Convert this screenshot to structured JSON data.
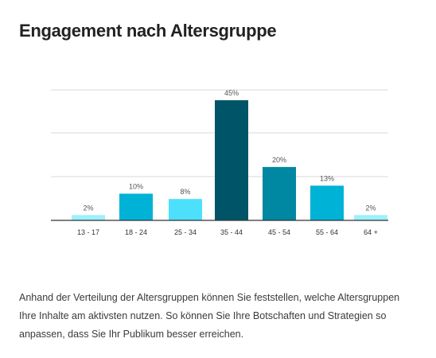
{
  "title": "Engagement nach Altersgruppe",
  "description": "Anhand der Verteilung der Altersgruppen können Sie feststellen, welche Altersgruppen Ihre Inhalte am aktivsten nutzen. So können Sie Ihre Botschaften und Strategien so anpassen, dass Sie Ihr Publikum besser erreichen.",
  "chart_data": {
    "type": "bar",
    "title": "",
    "xlabel": "",
    "ylabel": "",
    "categories": [
      "13 - 17",
      "18 - 24",
      "25 - 34",
      "35 - 44",
      "45 - 54",
      "55 - 64",
      "64 +"
    ],
    "values": [
      2,
      10,
      8,
      45,
      20,
      13,
      2
    ],
    "value_labels": [
      "2%",
      "10%",
      "8%",
      "45%",
      "20%",
      "13%",
      "2%"
    ],
    "unit": "%",
    "grid": true,
    "legend": "none",
    "colors": [
      "#9ef0fb",
      "#00b2d6",
      "#4de0fc",
      "#005468",
      "#0087a1",
      "#00b2d6",
      "#9ef0fb"
    ],
    "axis_color": "#333333",
    "grid_color": "#d9d9d9"
  }
}
